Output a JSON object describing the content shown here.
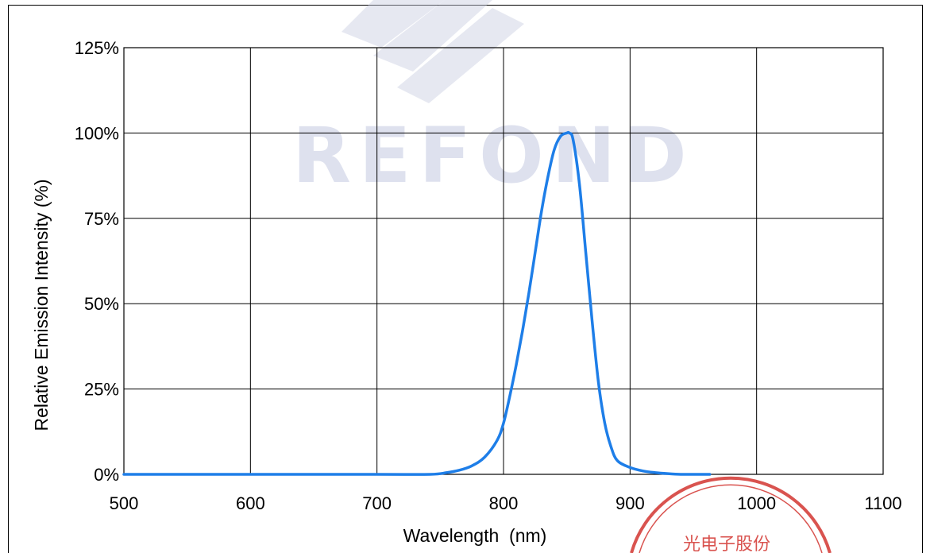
{
  "chart_data": {
    "type": "line",
    "xlabel": "Wavelength  (nm)",
    "ylabel": "Relative Emission Intensity (%)",
    "xlim": [
      500,
      1100
    ],
    "ylim": [
      0,
      125
    ],
    "x_ticks": [
      "500",
      "600",
      "700",
      "800",
      "900",
      "1000",
      "1100"
    ],
    "y_ticks": [
      "0%",
      "25%",
      "50%",
      "75%",
      "100%",
      "125%"
    ],
    "grid": true,
    "line_color": "#1e7ee8",
    "series": [
      {
        "x": [
          500,
          600,
          700,
          742,
          755,
          765,
          775,
          785,
          795,
          800,
          805,
          810,
          815,
          820,
          825,
          830,
          835,
          840,
          845,
          850,
          852,
          855,
          860,
          865,
          870,
          875,
          880,
          885,
          890,
          900,
          910,
          920,
          930,
          940,
          950,
          963
        ],
        "y": [
          0,
          0,
          0,
          0,
          0.5,
          1.2,
          2.5,
          5,
          10,
          15,
          23,
          32,
          42,
          53,
          65,
          77,
          87,
          95,
          99,
          100,
          100,
          98,
          85,
          65,
          45,
          27,
          15,
          8,
          4,
          2,
          1,
          0.5,
          0.2,
          0,
          0,
          0
        ]
      }
    ]
  },
  "watermark": {
    "text": "REFOND",
    "color": "#b7bedb"
  },
  "seal": {
    "text": "光电子股份",
    "color": "#d9534f"
  }
}
